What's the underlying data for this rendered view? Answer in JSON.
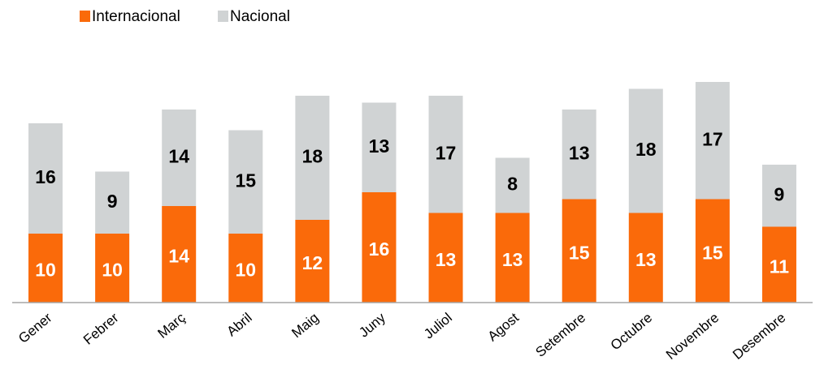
{
  "chart_data": {
    "type": "stacked_bar",
    "categories": [
      "Gener",
      "Febrer",
      "Març",
      "Abril",
      "Maig",
      "Juny",
      "Juliol",
      "Agost",
      "Setembre",
      "Octubre",
      "Novembre",
      "Desembre"
    ],
    "series": [
      {
        "name": "Internacional",
        "color": "#fa6a0a",
        "values": [
          10,
          10,
          14,
          10,
          12,
          16,
          13,
          13,
          15,
          13,
          15,
          11
        ]
      },
      {
        "name": "Nacional",
        "color": "#d0d3d4",
        "values": [
          16,
          9,
          14,
          15,
          18,
          13,
          17,
          8,
          13,
          18,
          17,
          9
        ]
      }
    ],
    "legend": "top-left"
  }
}
